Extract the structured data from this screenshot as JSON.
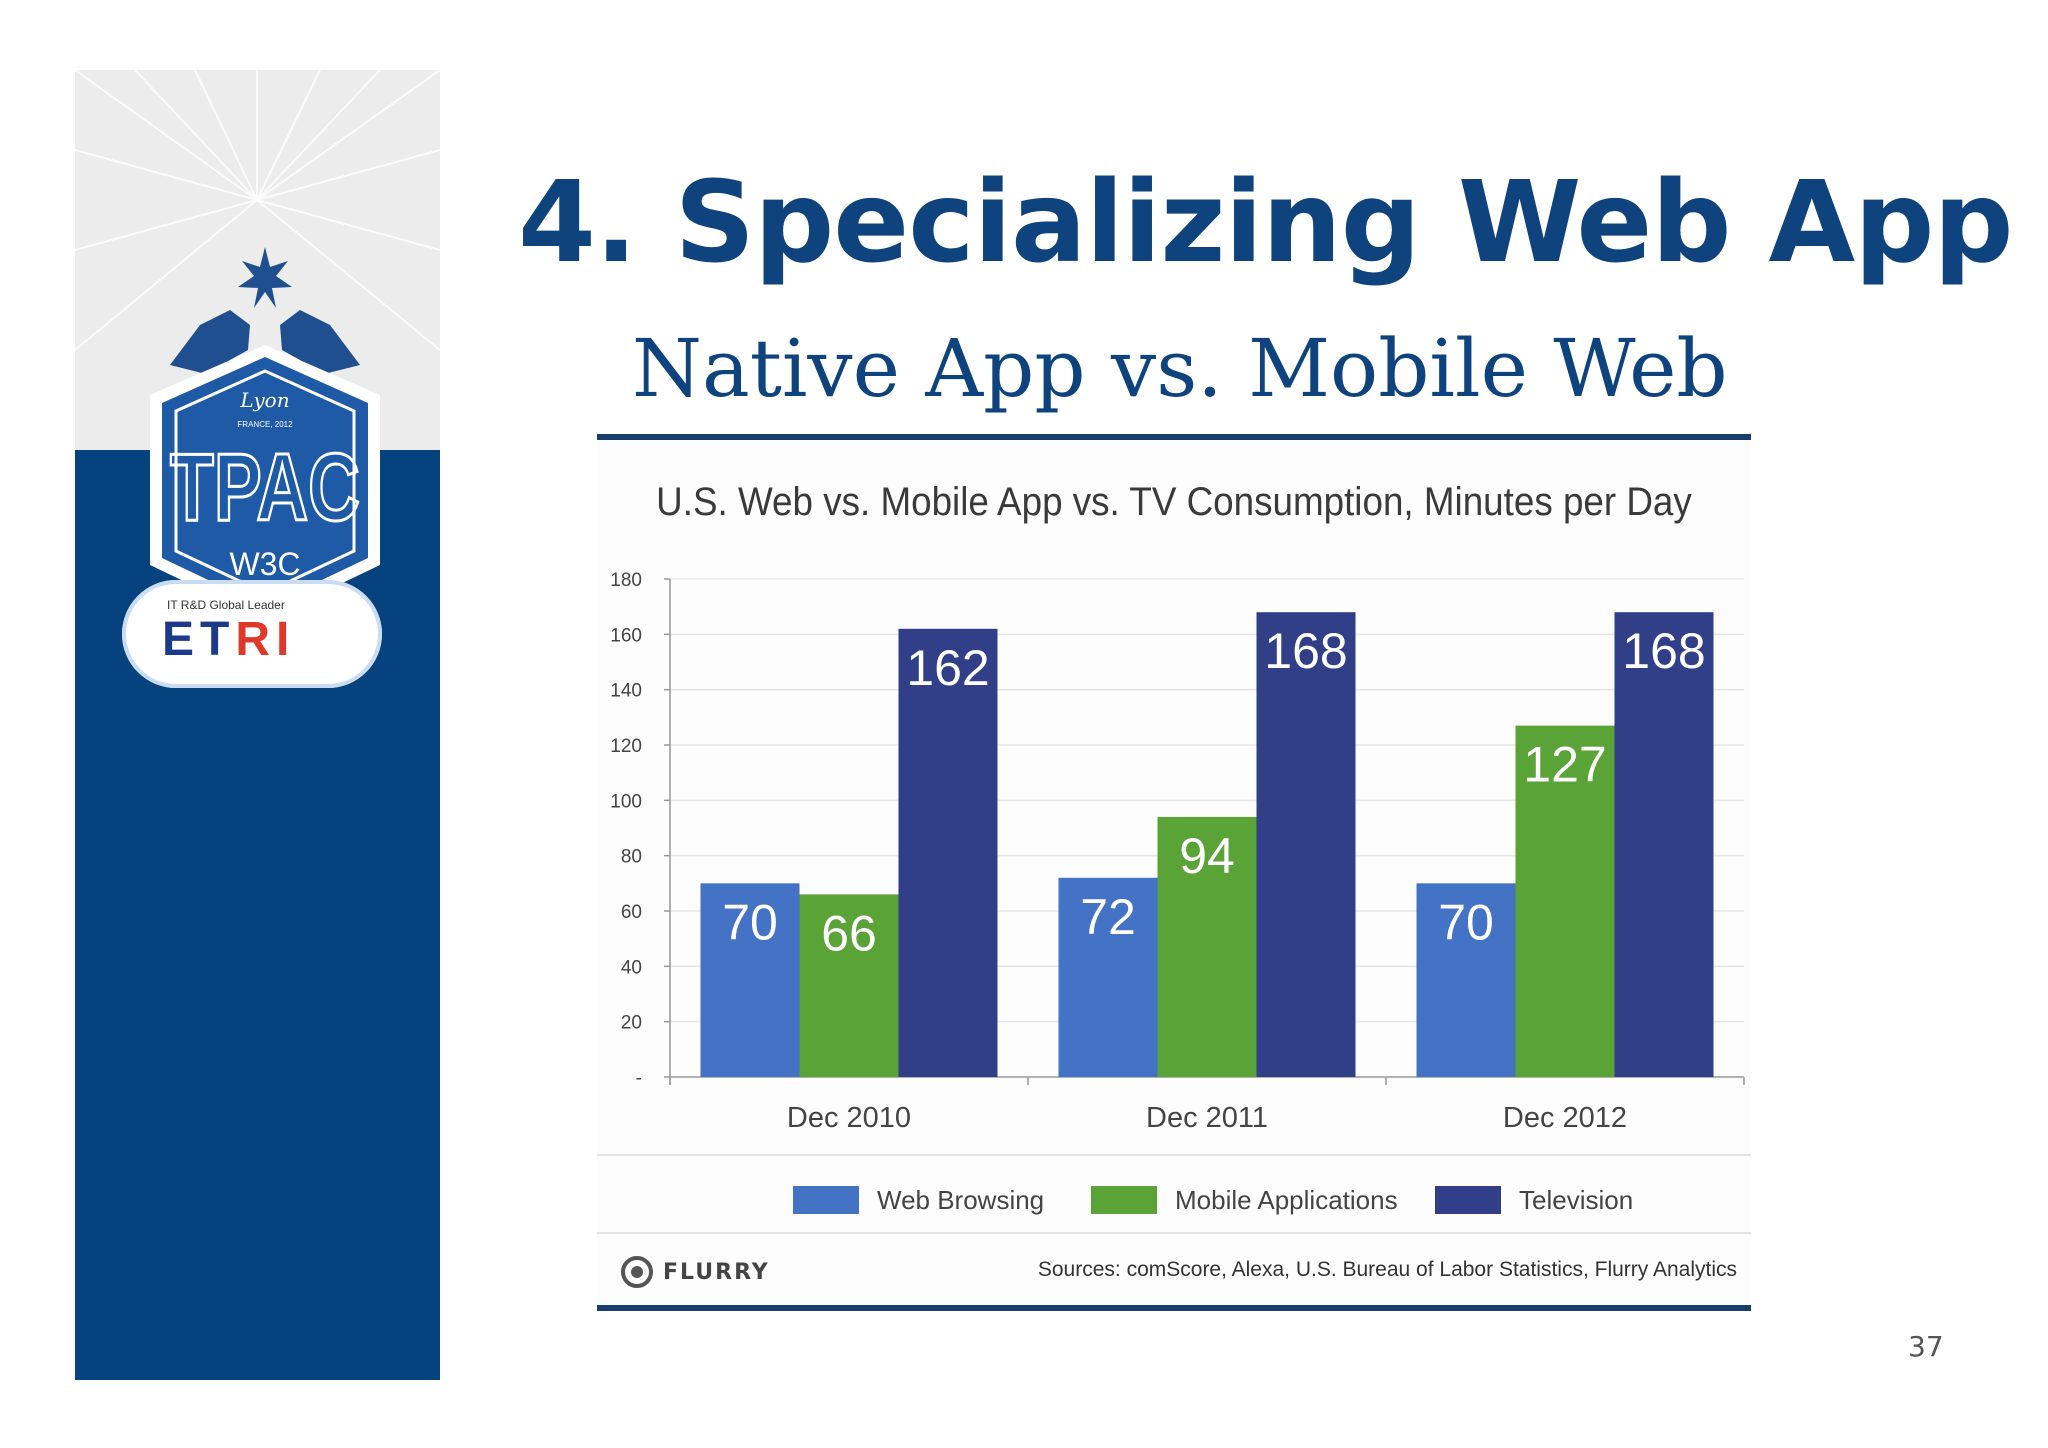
{
  "slide": {
    "title": "4. Specializing Web App",
    "subtitle": "Native App vs. Mobile Web",
    "page_number": "37"
  },
  "sidebar": {
    "badge_city": "Lyon",
    "badge_country": "FRANCE, 2012",
    "badge_name": "TPAC",
    "badge_org": "W3C",
    "etri_tagline": "IT R&D Global Leader",
    "etri_name_a": "ET",
    "etri_name_b": "RI"
  },
  "colors": {
    "title": "#0e437e",
    "sidebar": "#05427e",
    "web_browsing": "#4472c4",
    "mobile_applications": "#5aa336",
    "television": "#313e88"
  },
  "chart_data": {
    "type": "bar",
    "title": "U.S. Web vs. Mobile App vs. TV Consumption, Minutes per Day",
    "categories": [
      "Dec 2010",
      "Dec 2011",
      "Dec 2012"
    ],
    "series": [
      {
        "name": "Web Browsing",
        "values": [
          70,
          72,
          70
        ],
        "color": "#4472c4"
      },
      {
        "name": "Mobile Applications",
        "values": [
          66,
          94,
          127
        ],
        "color": "#5aa336"
      },
      {
        "name": "Television",
        "values": [
          162,
          168,
          168
        ],
        "color": "#313e88"
      }
    ],
    "ylim": [
      0,
      180
    ],
    "yticks": [
      "-",
      "20",
      "40",
      "60",
      "80",
      "100",
      "120",
      "140",
      "160",
      "180"
    ],
    "ytick_values": [
      0,
      20,
      40,
      60,
      80,
      100,
      120,
      140,
      160,
      180
    ],
    "grid": true,
    "legend": "bottom",
    "brand": "FLURRY",
    "source": "Sources: comScore, Alexa, U.S. Bureau of Labor Statistics, Flurry Analytics"
  }
}
